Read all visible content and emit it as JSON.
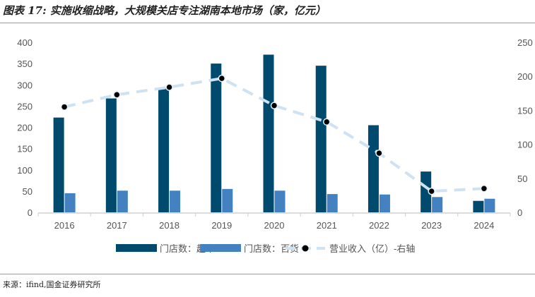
{
  "title": "图表 17: 实施收缩战略，大规模关店专注湖南本地市场（家，亿元）",
  "source": "来源：ifind,国金证券研究所",
  "chart_data": {
    "type": "bar+line",
    "categories": [
      "2016",
      "2017",
      "2018",
      "2019",
      "2020",
      "2021",
      "2022",
      "2023",
      "2024"
    ],
    "series": [
      {
        "name": "门店数：超市",
        "type": "bar",
        "axis": "left",
        "color": "#004a6e",
        "values": [
          223,
          268,
          292,
          350,
          371,
          345,
          205,
          96,
          27
        ]
      },
      {
        "name": "门店数：百货",
        "type": "bar",
        "axis": "left",
        "color": "#4381c1",
        "values": [
          45,
          51,
          51,
          55,
          51,
          43,
          42,
          36,
          32
        ]
      },
      {
        "name": "营业收入（亿）-右轴",
        "type": "line",
        "axis": "right",
        "color": "#cfe2f3",
        "values": [
          155,
          173,
          184,
          197,
          157,
          133,
          87,
          31,
          35
        ]
      }
    ],
    "yleft": {
      "ylim": [
        0,
        400
      ],
      "ticks": [
        "0",
        "50",
        "100",
        "150",
        "200",
        "250",
        "300",
        "350",
        "400"
      ]
    },
    "yright": {
      "ylim": [
        0,
        250
      ],
      "ticks": [
        "0",
        "50",
        "100",
        "150",
        "200",
        "250"
      ]
    },
    "legend": "bottom"
  }
}
